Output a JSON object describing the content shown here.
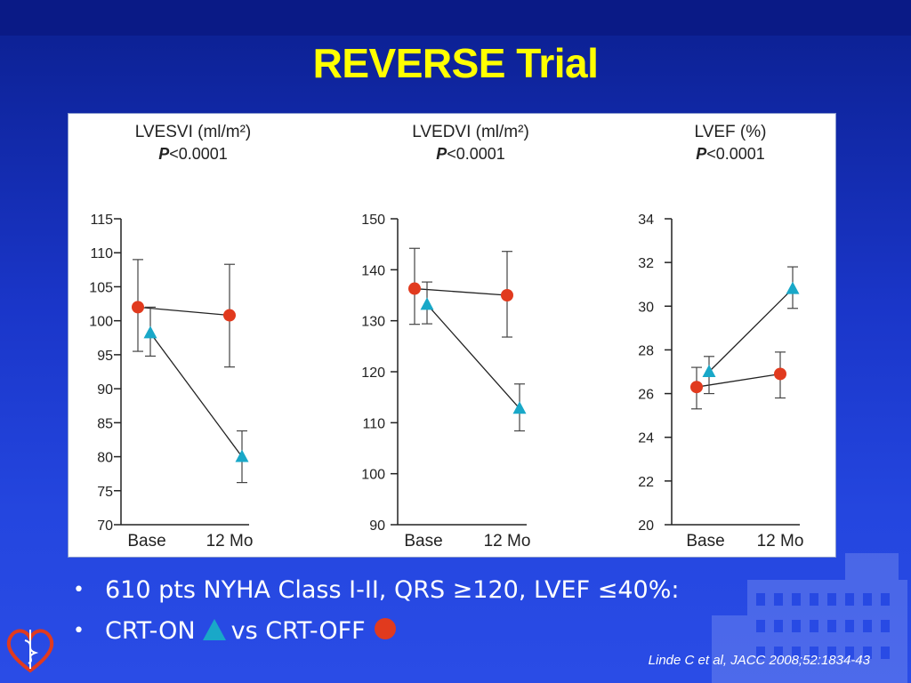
{
  "slide": {
    "title": "REVERSE Trial",
    "bullets": [
      "610 pts NYHA Class I-II, QRS ≥120, LVEF ≤40%:",
      "CRT-ON",
      "vs CRT-OFF"
    ],
    "bullet_symbol": "•",
    "citation": "Linde C et al, JACC 2008;52:1834-43",
    "colors": {
      "title": "#ffff00",
      "background": "#1a36c9",
      "crt_on": "#19a8c8",
      "crt_off": "#e13a1e"
    }
  },
  "chart_data": [
    {
      "type": "line",
      "title": "LVESVI (ml/m²)",
      "subtitle_p": "P",
      "subtitle_rest": "<0.0001",
      "categories": [
        "Base",
        "12 Mo"
      ],
      "ylim": [
        70,
        115
      ],
      "yticks": [
        "115",
        "110",
        "105",
        "100",
        "95",
        "90",
        "85",
        "80",
        "75",
        "70"
      ],
      "ytick_values": [
        115,
        110,
        105,
        100,
        95,
        90,
        85,
        80,
        75,
        70
      ],
      "series": [
        {
          "marker": "circle",
          "color": "#e13a1e",
          "values": [
            102,
            100.8
          ],
          "err_low": [
            95.5,
            93.2
          ],
          "err_high": [
            109,
            108.3
          ]
        },
        {
          "marker": "triangle",
          "color": "#19a8c8",
          "values": [
            98.2,
            80
          ],
          "err_low": [
            94.8,
            76.2
          ],
          "err_high": [
            102,
            83.8
          ]
        }
      ]
    },
    {
      "type": "line",
      "title": "LVEDVI (ml/m²)",
      "subtitle_p": "P",
      "subtitle_rest": "<0.0001",
      "categories": [
        "Base",
        "12 Mo"
      ],
      "ylim": [
        90,
        150
      ],
      "yticks": [
        "150",
        "140",
        "130",
        "120",
        "110",
        "100",
        "90"
      ],
      "ytick_values": [
        150,
        140,
        130,
        120,
        110,
        100,
        90
      ],
      "series": [
        {
          "marker": "circle",
          "color": "#e13a1e",
          "values": [
            136.3,
            135
          ],
          "err_low": [
            129.3,
            126.8
          ],
          "err_high": [
            144.2,
            143.6
          ]
        },
        {
          "marker": "triangle",
          "color": "#19a8c8",
          "values": [
            133.2,
            112.8
          ],
          "err_low": [
            129.4,
            108.4
          ],
          "err_high": [
            137.6,
            117.6
          ]
        }
      ]
    },
    {
      "type": "line",
      "title": "LVEF (%)",
      "subtitle_p": "P",
      "subtitle_rest": "<0.0001",
      "categories": [
        "Base",
        "12 Mo"
      ],
      "ylim": [
        20,
        34
      ],
      "yticks": [
        "34",
        "32",
        "30",
        "28",
        "26",
        "24",
        "22",
        "20"
      ],
      "ytick_values": [
        34,
        32,
        30,
        28,
        26,
        24,
        22,
        20
      ],
      "series": [
        {
          "marker": "circle",
          "color": "#e13a1e",
          "values": [
            26.3,
            26.9
          ],
          "err_low": [
            25.3,
            25.8
          ],
          "err_high": [
            27.2,
            27.9
          ]
        },
        {
          "marker": "triangle",
          "color": "#19a8c8",
          "values": [
            27,
            30.8
          ],
          "err_low": [
            26,
            29.9
          ],
          "err_high": [
            27.7,
            31.8
          ]
        }
      ]
    }
  ]
}
